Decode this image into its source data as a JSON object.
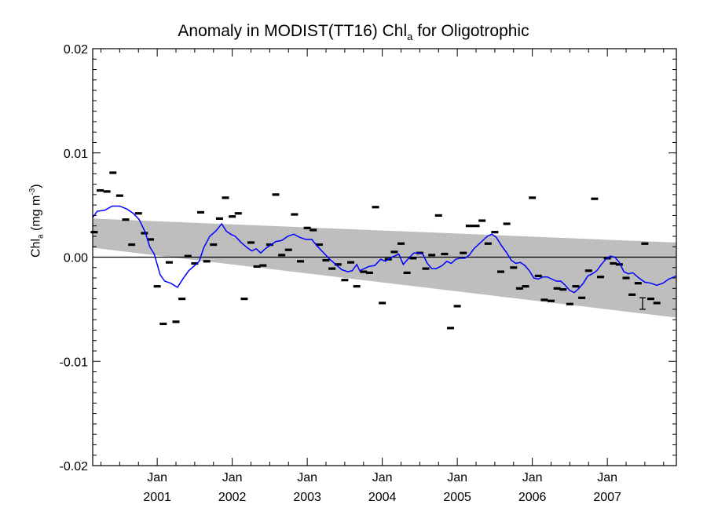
{
  "chart_data": {
    "type": "line",
    "title_main": "Anomaly in MODIST(TT16) Chl",
    "title_sub": "a",
    "title_end": " for Oligotrophic",
    "ylabel_main": "Chl",
    "ylabel_sub": "a",
    "ylabel_unit": " (mg m",
    "ylabel_sup": "-3",
    "ylabel_close": ")",
    "ylim": [
      -0.02,
      0.02
    ],
    "xlim": [
      2000.14,
      2007.92
    ],
    "yticks": [
      {
        "v": 0.02,
        "label": "0.02"
      },
      {
        "v": 0.01,
        "label": "0.01"
      },
      {
        "v": 0.0,
        "label": "0.00"
      },
      {
        "v": -0.01,
        "label": "-0.01"
      },
      {
        "v": -0.02,
        "label": "-0.02"
      }
    ],
    "xticks": [
      {
        "v": 2001,
        "month": "Jan",
        "year": "2001"
      },
      {
        "v": 2002,
        "month": "Jan",
        "year": "2002"
      },
      {
        "v": 2003,
        "month": "Jan",
        "year": "2003"
      },
      {
        "v": 2004,
        "month": "Jan",
        "year": "2004"
      },
      {
        "v": 2005,
        "month": "Jan",
        "year": "2005"
      },
      {
        "v": 2006,
        "month": "Jan",
        "year": "2006"
      },
      {
        "v": 2007,
        "month": "Jan",
        "year": "2007"
      }
    ],
    "grid": false,
    "zero_line": true,
    "band": {
      "upper": [
        [
          2000.14,
          0.0037
        ],
        [
          2007.92,
          0.0014
        ]
      ],
      "lower": [
        [
          2000.14,
          0.0009
        ],
        [
          2007.92,
          -0.0058
        ]
      ]
    },
    "monthly_points": [
      [
        2000.16,
        0.0024
      ],
      [
        2000.24,
        0.0064
      ],
      [
        2000.33,
        0.0063
      ],
      [
        2000.41,
        0.0081
      ],
      [
        2000.5,
        0.0059
      ],
      [
        2000.58,
        0.0036
      ],
      [
        2000.66,
        0.0012
      ],
      [
        2000.75,
        0.0042
      ],
      [
        2000.83,
        0.0023
      ],
      [
        2000.91,
        0.0017
      ],
      [
        2001.0,
        -0.0028
      ],
      [
        2001.08,
        -0.0064
      ],
      [
        2001.16,
        -0.0005
      ],
      [
        2001.25,
        -0.0062
      ],
      [
        2001.33,
        -0.004
      ],
      [
        2001.41,
        0.0001
      ],
      [
        2001.5,
        -0.0006
      ],
      [
        2001.58,
        0.0043
      ],
      [
        2001.66,
        -0.0004
      ],
      [
        2001.75,
        0.0012
      ],
      [
        2001.83,
        0.0037
      ],
      [
        2001.91,
        0.0057
      ],
      [
        2002.0,
        0.0039
      ],
      [
        2002.08,
        0.0042
      ],
      [
        2002.16,
        -0.004
      ],
      [
        2002.25,
        0.0014
      ],
      [
        2002.33,
        -0.0009
      ],
      [
        2002.41,
        -0.0008
      ],
      [
        2002.5,
        0.0012
      ],
      [
        2002.58,
        0.006
      ],
      [
        2002.66,
        0.0002
      ],
      [
        2002.75,
        0.0007
      ],
      [
        2002.83,
        0.0041
      ],
      [
        2002.91,
        -0.0004
      ],
      [
        2003.0,
        0.0028
      ],
      [
        2003.08,
        0.0026
      ],
      [
        2003.16,
        0.0012
      ],
      [
        2003.25,
        -0.0003
      ],
      [
        2003.33,
        -0.0011
      ],
      [
        2003.41,
        -0.0007
      ],
      [
        2003.5,
        -0.0022
      ],
      [
        2003.58,
        -0.0005
      ],
      [
        2003.66,
        -0.0028
      ],
      [
        2003.75,
        -0.0014
      ],
      [
        2003.83,
        -0.0015
      ],
      [
        2003.91,
        0.0048
      ],
      [
        2004.0,
        -0.0044
      ],
      [
        2004.08,
        -0.0002
      ],
      [
        2004.16,
        0.0005
      ],
      [
        2004.25,
        0.0013
      ],
      [
        2004.33,
        -0.0015
      ],
      [
        2004.41,
        -0.0001
      ],
      [
        2004.5,
        0.0004
      ],
      [
        2004.58,
        -0.0011
      ],
      [
        2004.66,
        0.0002
      ],
      [
        2004.75,
        0.004
      ],
      [
        2004.83,
        0.0003
      ],
      [
        2004.91,
        -0.0068
      ],
      [
        2005.0,
        -0.0047
      ],
      [
        2005.08,
        0.0004
      ],
      [
        2005.16,
        0.003
      ],
      [
        2005.25,
        0.003
      ],
      [
        2005.33,
        0.0035
      ],
      [
        2005.41,
        0.0013
      ],
      [
        2005.5,
        0.0024
      ],
      [
        2005.58,
        -0.0014
      ],
      [
        2005.66,
        0.0032
      ],
      [
        2005.75,
        -0.001
      ],
      [
        2005.83,
        -0.003
      ],
      [
        2005.91,
        -0.0028
      ],
      [
        2006.0,
        0.0057
      ],
      [
        2006.08,
        -0.0018
      ],
      [
        2006.16,
        -0.0041
      ],
      [
        2006.25,
        -0.0042
      ],
      [
        2006.33,
        -0.003
      ],
      [
        2006.41,
        -0.0031
      ],
      [
        2006.5,
        -0.0045
      ],
      [
        2006.58,
        -0.0028
      ],
      [
        2006.66,
        -0.0039
      ],
      [
        2006.75,
        -0.0013
      ],
      [
        2006.83,
        0.0056
      ],
      [
        2006.91,
        -0.0019
      ],
      [
        2007.0,
        -0.0001
      ],
      [
        2007.08,
        -0.0006
      ],
      [
        2007.16,
        -0.0007
      ],
      [
        2007.25,
        -0.002
      ],
      [
        2007.33,
        -0.0036
      ],
      [
        2007.41,
        -0.0025
      ],
      [
        2007.5,
        0.0013
      ],
      [
        2007.58,
        -0.004
      ],
      [
        2007.66,
        -0.0044
      ]
    ],
    "smoothed_line": [
      [
        2000.14,
        0.0038
      ],
      [
        2000.2,
        0.0044
      ],
      [
        2000.3,
        0.0045
      ],
      [
        2000.4,
        0.0049
      ],
      [
        2000.5,
        0.0049
      ],
      [
        2000.6,
        0.0046
      ],
      [
        2000.68,
        0.0042
      ],
      [
        2000.76,
        0.0036
      ],
      [
        2000.84,
        0.0024
      ],
      [
        2000.9,
        0.001
      ],
      [
        2000.96,
        0.0003
      ],
      [
        2001.04,
        -0.0017
      ],
      [
        2001.1,
        -0.0023
      ],
      [
        2001.18,
        -0.0025
      ],
      [
        2001.27,
        -0.0029
      ],
      [
        2001.35,
        -0.002
      ],
      [
        2001.42,
        -0.0013
      ],
      [
        2001.5,
        -0.0008
      ],
      [
        2001.56,
        -0.0004
      ],
      [
        2001.62,
        0.0009
      ],
      [
        2001.7,
        0.002
      ],
      [
        2001.78,
        0.0025
      ],
      [
        2001.86,
        0.0032
      ],
      [
        2001.92,
        0.0025
      ],
      [
        2001.98,
        0.0022
      ],
      [
        2002.04,
        0.002
      ],
      [
        2002.12,
        0.0014
      ],
      [
        2002.2,
        0.0009
      ],
      [
        2002.26,
        0.0006
      ],
      [
        2002.32,
        0.0008
      ],
      [
        2002.38,
        0.0004
      ],
      [
        2002.44,
        0.0008
      ],
      [
        2002.5,
        0.0011
      ],
      [
        2002.58,
        0.0015
      ],
      [
        2002.66,
        0.0016
      ],
      [
        2002.74,
        0.002
      ],
      [
        2002.82,
        0.0022
      ],
      [
        2002.9,
        0.0019
      ],
      [
        2002.98,
        0.0017
      ],
      [
        2003.06,
        0.0017
      ],
      [
        2003.14,
        0.001
      ],
      [
        2003.22,
        0.0004
      ],
      [
        2003.3,
        -0.0002
      ],
      [
        2003.38,
        -0.0007
      ],
      [
        2003.46,
        -0.0012
      ],
      [
        2003.54,
        -0.0014
      ],
      [
        2003.6,
        -0.0013
      ],
      [
        2003.66,
        -0.0007
      ],
      [
        2003.7,
        -0.0013
      ],
      [
        2003.76,
        -0.0011
      ],
      [
        2003.82,
        -0.0009
      ],
      [
        2003.9,
        -0.0008
      ],
      [
        2003.98,
        -0.0002
      ],
      [
        2004.04,
        -0.0004
      ],
      [
        2004.1,
        -0.0001
      ],
      [
        2004.16,
        0.0001
      ],
      [
        2004.22,
        0.0003
      ],
      [
        2004.28,
        -0.0007
      ],
      [
        2004.34,
        -0.0002
      ],
      [
        2004.42,
        0.0004
      ],
      [
        2004.48,
        0.0004
      ],
      [
        2004.54,
        0.0003
      ],
      [
        2004.6,
        -0.0006
      ],
      [
        2004.66,
        -0.0011
      ],
      [
        2004.72,
        -0.0011
      ],
      [
        2004.8,
        -0.0008
      ],
      [
        2004.86,
        -0.0004
      ],
      [
        2004.92,
        -0.0006
      ],
      [
        2004.98,
        -0.0002
      ],
      [
        2005.04,
        -0.0001
      ],
      [
        2005.1,
        -0.0001
      ],
      [
        2005.16,
        0.0002
      ],
      [
        2005.22,
        0.0008
      ],
      [
        2005.28,
        0.0012
      ],
      [
        2005.34,
        0.0016
      ],
      [
        2005.4,
        0.002
      ],
      [
        2005.46,
        0.0022
      ],
      [
        2005.52,
        0.0019
      ],
      [
        2005.58,
        0.0012
      ],
      [
        2005.66,
        0.0004
      ],
      [
        2005.72,
        -0.0003
      ],
      [
        2005.78,
        -0.0006
      ],
      [
        2005.84,
        -0.0005
      ],
      [
        2005.9,
        -0.0008
      ],
      [
        2005.96,
        -0.0013
      ],
      [
        2006.02,
        -0.002
      ],
      [
        2006.08,
        -0.0021
      ],
      [
        2006.14,
        -0.0019
      ],
      [
        2006.2,
        -0.0019
      ],
      [
        2006.26,
        -0.0021
      ],
      [
        2006.32,
        -0.0023
      ],
      [
        2006.38,
        -0.0023
      ],
      [
        2006.44,
        -0.0027
      ],
      [
        2006.5,
        -0.0032
      ],
      [
        2006.56,
        -0.0034
      ],
      [
        2006.62,
        -0.003
      ],
      [
        2006.68,
        -0.0025
      ],
      [
        2006.74,
        -0.0018
      ],
      [
        2006.8,
        -0.0016
      ],
      [
        2006.86,
        -0.0013
      ],
      [
        2006.92,
        -0.0007
      ],
      [
        2006.98,
        -0.0002
      ],
      [
        2007.04,
        0.0001
      ],
      [
        2007.1,
        0.0
      ],
      [
        2007.16,
        -0.0005
      ],
      [
        2007.22,
        -0.0014
      ],
      [
        2007.28,
        -0.0016
      ],
      [
        2007.34,
        -0.0015
      ],
      [
        2007.42,
        -0.002
      ],
      [
        2007.5,
        -0.0024
      ],
      [
        2007.58,
        -0.0025
      ],
      [
        2007.66,
        -0.0027
      ],
      [
        2007.74,
        -0.0025
      ],
      [
        2007.82,
        -0.0021
      ],
      [
        2007.92,
        -0.0018
      ]
    ],
    "error_bar": {
      "x": 2007.47,
      "y": -0.0045,
      "low": -0.005,
      "high": -0.0039
    },
    "colors": {
      "line": "#0000ff",
      "band": "#bebebe",
      "points": "#000000",
      "axes": "#000000"
    }
  }
}
